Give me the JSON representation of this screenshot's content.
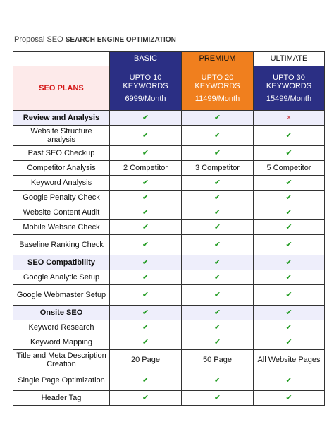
{
  "title": {
    "prefix": "Proposal SEO ",
    "main": "SEARCH ENGINE OPTIMIZATION"
  },
  "plans": {
    "basic": {
      "name": "BASIC",
      "keywords": "UPTO 10 KEYWORDS",
      "price": "6999/Month"
    },
    "premium": {
      "name": "PREMIUM",
      "keywords": "UPTO 20 KEYWORDS",
      "price": "11499/Month"
    },
    "ultimate": {
      "name": "ULTIMATE",
      "keywords": "UPTO 30 KEYWORDS",
      "price": "15499/Month"
    },
    "label": "SEO PLANS"
  },
  "rows": [
    {
      "label": "Review and Analysis",
      "section": true,
      "values": [
        "✔",
        "✔",
        "×"
      ]
    },
    {
      "label": "Website Structure analysis",
      "values": [
        "✔",
        "✔",
        "✔"
      ]
    },
    {
      "label": "Past SEO Checkup",
      "values": [
        "✔",
        "✔",
        "✔"
      ]
    },
    {
      "label": "Competitor Analysis",
      "values": [
        "2 Competitor",
        "3 Competitor",
        "5 Competitor"
      ]
    },
    {
      "label": "Keyword Analysis",
      "values": [
        "✔",
        "✔",
        "✔"
      ]
    },
    {
      "label": "Google Penalty Check",
      "values": [
        "✔",
        "✔",
        "✔"
      ]
    },
    {
      "label": "Website Content Audit",
      "values": [
        "✔",
        "✔",
        "✔"
      ]
    },
    {
      "label": "Mobile Website Check",
      "values": [
        "✔",
        "✔",
        "✔"
      ]
    },
    {
      "label": "Baseline Ranking Check",
      "values": [
        "✔",
        "✔",
        "✔"
      ]
    },
    {
      "label": "SEO Compatibility",
      "section": true,
      "values": [
        "✔",
        "✔",
        "✔"
      ]
    },
    {
      "label": "Google Analytic Setup",
      "values": [
        "✔",
        "✔",
        "✔"
      ]
    },
    {
      "label": "Google Webmaster Setup",
      "values": [
        "✔",
        "✔",
        "✔"
      ]
    },
    {
      "label": "Onsite SEO",
      "section": true,
      "values": [
        "✔",
        "✔",
        "✔"
      ]
    },
    {
      "label": "Keyword Research",
      "values": [
        "✔",
        "✔",
        "✔"
      ]
    },
    {
      "label": "Keyword Mapping",
      "values": [
        "✔",
        "✔",
        "✔"
      ]
    },
    {
      "label": "Title and Meta Description Creation",
      "values": [
        "20 Page",
        "50 Page",
        "All Website Pages"
      ]
    },
    {
      "label": "Single Page Optimization",
      "values": [
        "✔",
        "✔",
        "✔"
      ]
    },
    {
      "label": "Header Tag",
      "values": [
        "✔",
        "✔",
        "✔"
      ]
    }
  ],
  "colors": {
    "basic": "#2b2f84",
    "premium": "#f07f1e",
    "check": "#1f9a1f",
    "cross": "#c9343a",
    "plans_label": "#d51818",
    "section_bg": "#eeeefb"
  }
}
